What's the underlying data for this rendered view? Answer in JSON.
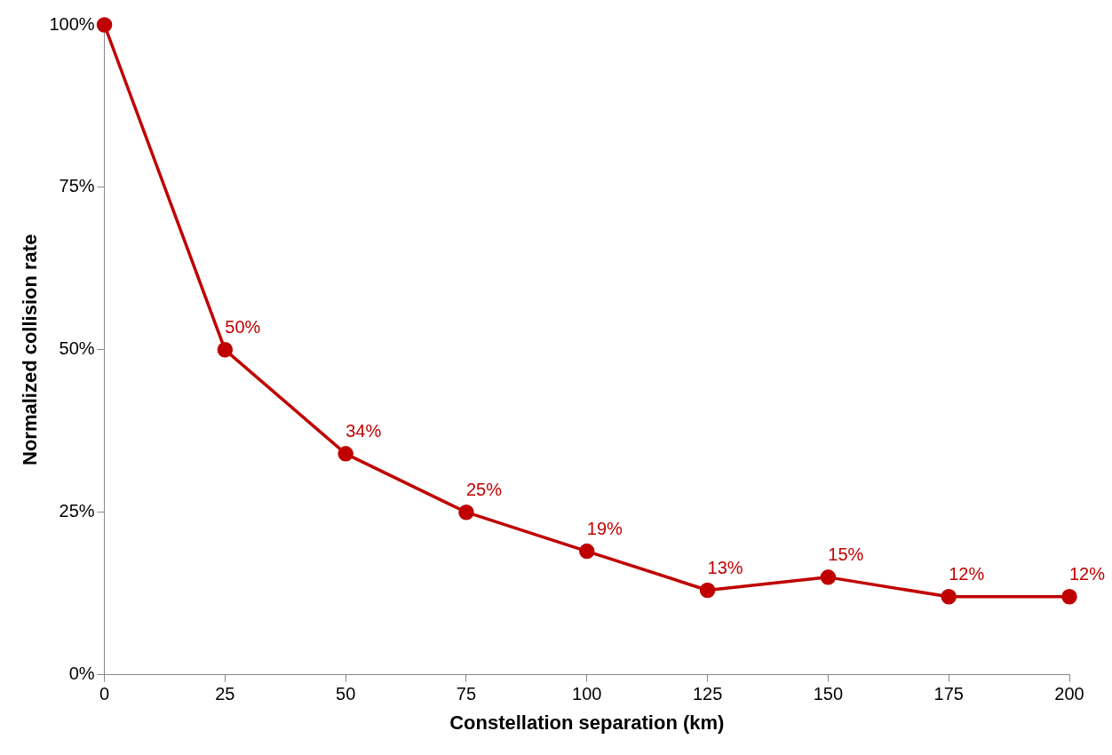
{
  "chart_data": {
    "type": "line",
    "xlabel": "Constellation separation (km)",
    "ylabel": "Normalized collision rate",
    "x": [
      0,
      25,
      50,
      75,
      100,
      125,
      150,
      175,
      200
    ],
    "series": [
      {
        "color": "#c00000",
        "values": [
          100,
          50,
          34,
          25,
          19,
          13,
          15,
          12,
          12
        ],
        "value_labels": [
          null,
          "50%",
          "34%",
          "25%",
          "19%",
          "13%",
          "15%",
          "12%",
          "12%"
        ]
      }
    ],
    "xlim": [
      0,
      200
    ],
    "xticks": [
      0,
      25,
      50,
      75,
      100,
      125,
      150,
      175,
      200
    ],
    "ylim": [
      0,
      100
    ],
    "yticks": [
      {
        "value": 0,
        "label": "0%"
      },
      {
        "value": 25,
        "label": "25%"
      },
      {
        "value": 50,
        "label": "50%"
      },
      {
        "value": 75,
        "label": "75%"
      },
      {
        "value": 100,
        "label": "100%"
      }
    ],
    "grid": false,
    "legend": false,
    "marker": "circle",
    "line_style": "solid"
  }
}
